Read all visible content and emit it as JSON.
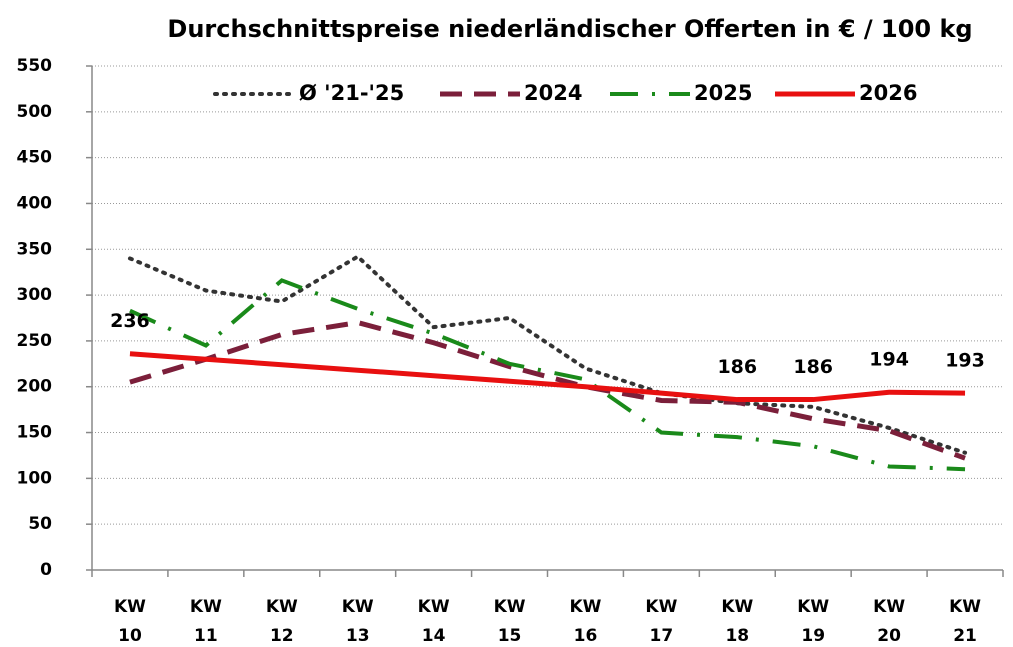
{
  "chart_data": {
    "type": "line",
    "title": "Durchschnittspreise niederländischer Offerten in € / 100 kg",
    "categories": [
      "KW 10",
      "KW 11",
      "KW 12",
      "KW 13",
      "KW 14",
      "KW 15",
      "KW 16",
      "KW 17",
      "KW 18",
      "KW 19",
      "KW 20",
      "KW 21"
    ],
    "series": [
      {
        "name": "Ø '21-'25",
        "color": "#333333",
        "style": "dotted",
        "values": [
          340,
          305,
          293,
          342,
          265,
          275,
          220,
          193,
          182,
          178,
          155,
          128
        ]
      },
      {
        "name": "2024",
        "color": "#7b1f3a",
        "style": "dashed",
        "values": [
          205,
          230,
          257,
          270,
          248,
          222,
          200,
          185,
          183,
          165,
          152,
          122
        ]
      },
      {
        "name": "2025",
        "color": "#1a8a1a",
        "style": "dashdot",
        "values": [
          283,
          245,
          316,
          285,
          258,
          225,
          208,
          150,
          145,
          135,
          113,
          110
        ]
      },
      {
        "name": "2026",
        "color": "#e81010",
        "style": "solid",
        "values": [
          236,
          230,
          224,
          218,
          212,
          206,
          200,
          193,
          186,
          186,
          194,
          193
        ],
        "value_labels": [
          236,
          null,
          null,
          null,
          null,
          null,
          null,
          null,
          186,
          186,
          194,
          193
        ]
      }
    ],
    "ylim": [
      0,
      550
    ],
    "yticks": [
      0,
      50,
      100,
      150,
      200,
      250,
      300,
      350,
      400,
      450,
      500,
      550
    ],
    "grid": true,
    "legend": "top"
  }
}
